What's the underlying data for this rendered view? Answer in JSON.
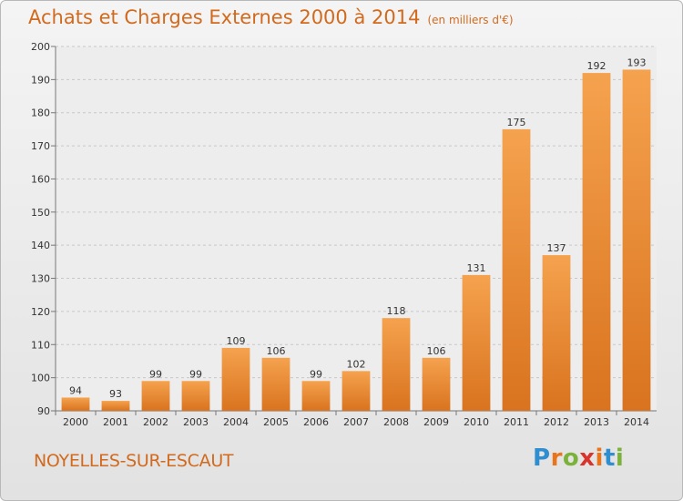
{
  "header": {
    "title": "Achats et Charges Externes 2000 à 2014",
    "unit": "(en milliers d'€)"
  },
  "footer": {
    "city": "NOYELLES-SUR-ESCAUT",
    "logo_text": "Proxiti"
  },
  "colors": {
    "accent": "#d26a1e",
    "bar_light": "#f5a24e",
    "bar_dark": "#d9731f",
    "logo_letters": [
      "#2f8ecf",
      "#e9741a",
      "#7bb23a",
      "#d9342b",
      "#e9741a",
      "#2f8ecf",
      "#7bb23a"
    ]
  },
  "chart_data": {
    "type": "bar",
    "categories": [
      "2000",
      "2001",
      "2002",
      "2003",
      "2004",
      "2005",
      "2006",
      "2007",
      "2008",
      "2009",
      "2010",
      "2011",
      "2012",
      "2013",
      "2014"
    ],
    "values": [
      94,
      93,
      99,
      99,
      109,
      106,
      99,
      102,
      118,
      106,
      131,
      175,
      137,
      192,
      193
    ],
    "ylim": [
      90,
      200
    ],
    "yticks": [
      90,
      100,
      110,
      120,
      130,
      140,
      150,
      160,
      170,
      180,
      190,
      200
    ],
    "grid": true,
    "legend": "none"
  }
}
